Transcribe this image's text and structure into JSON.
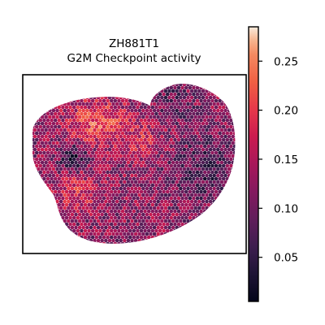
{
  "chart_data": {
    "type": "heatmap",
    "title_line1": "ZH881T1",
    "title_line2": "G2M Checkpoint activity",
    "colormap": "rocket",
    "value_range": [
      0.005,
      0.285
    ],
    "colorbar_ticks": [
      "0.05",
      "0.10",
      "0.15",
      "0.20",
      "0.25"
    ],
    "colorbar_tick_values": [
      0.05,
      0.1,
      0.15,
      0.2,
      0.25
    ],
    "colormap_stops": [
      {
        "v": 0.0,
        "color": "#03051a"
      },
      {
        "v": 0.1,
        "color": "#1e1435"
      },
      {
        "v": 0.2,
        "color": "#3e1e4f"
      },
      {
        "v": 0.3,
        "color": "#611e5b"
      },
      {
        "v": 0.4,
        "color": "#84195f"
      },
      {
        "v": 0.5,
        "color": "#a8185a"
      },
      {
        "v": 0.6,
        "color": "#cb1b4f"
      },
      {
        "v": 0.7,
        "color": "#e6384a"
      },
      {
        "v": 0.8,
        "color": "#f06043"
      },
      {
        "v": 0.9,
        "color": "#f58a61"
      },
      {
        "v": 0.95,
        "color": "#f6b48e"
      },
      {
        "v": 1.0,
        "color": "#faebdd"
      }
    ],
    "xlabel": "",
    "ylabel": "",
    "grid": false,
    "axis_ticks": false
  }
}
